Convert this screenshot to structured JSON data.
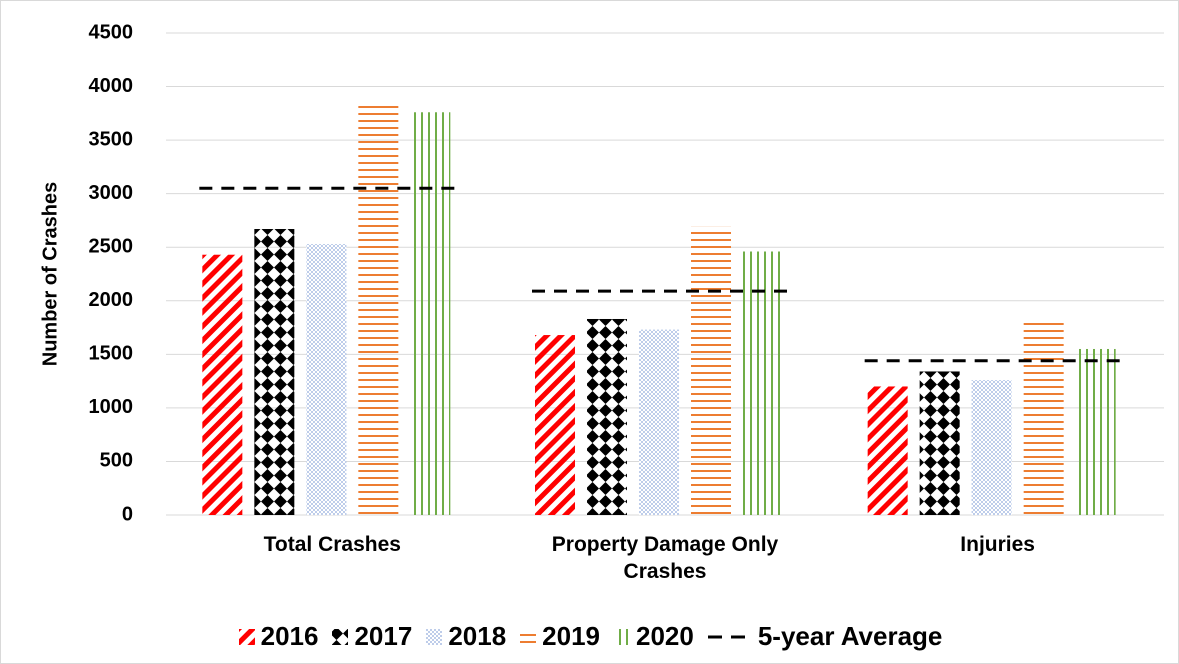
{
  "chart_data": {
    "type": "bar",
    "y_axis_label": "Number of Crashes",
    "categories": [
      "Total Crashes",
      "Property Damage Only Crashes",
      "Injuries"
    ],
    "series": [
      {
        "name": "2016",
        "color": "#ff0000",
        "pattern": "diagonal",
        "values": [
          2430,
          1680,
          1200
        ]
      },
      {
        "name": "2017",
        "color": "#000000",
        "pattern": "diamond",
        "values": [
          2670,
          1830,
          1340
        ]
      },
      {
        "name": "2018",
        "color": "#8faadc",
        "pattern": "dots",
        "values": [
          2530,
          1730,
          1260
        ]
      },
      {
        "name": "2019",
        "color": "#ed7d31",
        "pattern": "horizontal",
        "values": [
          3850,
          2690,
          1800
        ]
      },
      {
        "name": "2020",
        "color": "#70ad47",
        "pattern": "vertical",
        "values": [
          3760,
          2460,
          1550
        ]
      }
    ],
    "average": {
      "name": "5-year Average",
      "color": "#000000",
      "values": [
        3050,
        2090,
        1440
      ]
    },
    "ylim": [
      0,
      4500
    ],
    "yticks": [
      0,
      500,
      1000,
      1500,
      2000,
      2500,
      3000,
      3500,
      4000,
      4500
    ],
    "grid": true,
    "legend": "bottom"
  }
}
